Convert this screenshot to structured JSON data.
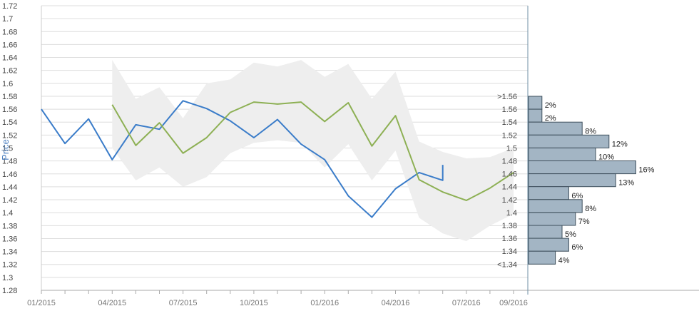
{
  "chart_data": [
    {
      "type": "line",
      "ylabel": "Price",
      "ylim": [
        1.28,
        1.72
      ],
      "yticks": [
        "1.28",
        "1.3",
        "1.32",
        "1.34",
        "1.36",
        "1.38",
        "1.4",
        "1.42",
        "1.44",
        "1.46",
        "1.48",
        "1.5",
        "1.52",
        "1.54",
        "1.56",
        "1.58",
        "1.6",
        "1.62",
        "1.64",
        "1.66",
        "1.68",
        "1.7",
        "1.72"
      ],
      "xtick_labels": [
        "01/2015",
        "04/2015",
        "07/2015",
        "10/2015",
        "01/2016",
        "04/2016",
        "07/2016",
        "09/2016"
      ],
      "grid": true,
      "series": [
        {
          "style": "line",
          "color": "#3a7cc9",
          "x": [
            "01/2015",
            "02/2015",
            "03/2015",
            "04/2015",
            "05/2015",
            "06/2015",
            "07/2015",
            "08/2015",
            "09/2015",
            "10/2015",
            "11/2015",
            "12/2015",
            "01/2016",
            "02/2016",
            "03/2016",
            "04/2016",
            "05/2016",
            "06/2016",
            "06/2016"
          ],
          "values": [
            1.56,
            1.507,
            1.545,
            1.482,
            1.536,
            1.529,
            1.573,
            1.561,
            1.542,
            1.516,
            1.544,
            1.506,
            1.482,
            1.426,
            1.393,
            1.437,
            1.462,
            1.45,
            1.474
          ]
        },
        {
          "style": "line",
          "color": "#8db054",
          "x": [
            "04/2015",
            "05/2015",
            "06/2015",
            "07/2015",
            "08/2015",
            "09/2015",
            "10/2015",
            "11/2015",
            "12/2015",
            "01/2016",
            "02/2016",
            "03/2016",
            "04/2016",
            "05/2016",
            "06/2016",
            "07/2016",
            "08/2016",
            "09/2016"
          ],
          "values": [
            1.567,
            1.504,
            1.539,
            1.492,
            1.516,
            1.555,
            1.571,
            1.568,
            1.571,
            1.541,
            1.57,
            1.503,
            1.55,
            1.451,
            1.432,
            1.419,
            1.438,
            1.462
          ]
        },
        {
          "style": "band",
          "color": "#eeeeee",
          "x": [
            "04/2015",
            "05/2015",
            "06/2015",
            "07/2015",
            "08/2015",
            "09/2015",
            "10/2015",
            "11/2015",
            "12/2015",
            "01/2016",
            "02/2016",
            "03/2016",
            "04/2016",
            "05/2016",
            "06/2016",
            "07/2016",
            "08/2016",
            "09/2016"
          ],
          "upper": [
            1.636,
            1.576,
            1.594,
            1.546,
            1.6,
            1.606,
            1.632,
            1.626,
            1.636,
            1.61,
            1.63,
            1.576,
            1.618,
            1.51,
            1.494,
            1.484,
            1.486,
            1.5
          ],
          "lower": [
            1.5,
            1.45,
            1.47,
            1.44,
            1.455,
            1.492,
            1.508,
            1.512,
            1.508,
            1.47,
            1.506,
            1.45,
            1.496,
            1.392,
            1.368,
            1.356,
            1.38,
            1.398
          ]
        }
      ]
    },
    {
      "type": "bar",
      "orientation": "horizontal",
      "color": "#a3b5c4",
      "categories": [
        ">1.56",
        "1.56",
        "1.54",
        "1.52",
        "1.5",
        "1.48",
        "1.46",
        "1.44",
        "1.42",
        "1.4",
        "1.38",
        "1.36",
        "1.34",
        "<1.34"
      ],
      "values": [
        2,
        2,
        8,
        12,
        10,
        16,
        13,
        6,
        8,
        7,
        5,
        6,
        4,
        0
      ],
      "value_labels": [
        "2%",
        "2%",
        "8%",
        "12%",
        "10%",
        "16%",
        "13%",
        "6%",
        "8%",
        "7%",
        "5%",
        "6%",
        "4%",
        ""
      ]
    }
  ]
}
